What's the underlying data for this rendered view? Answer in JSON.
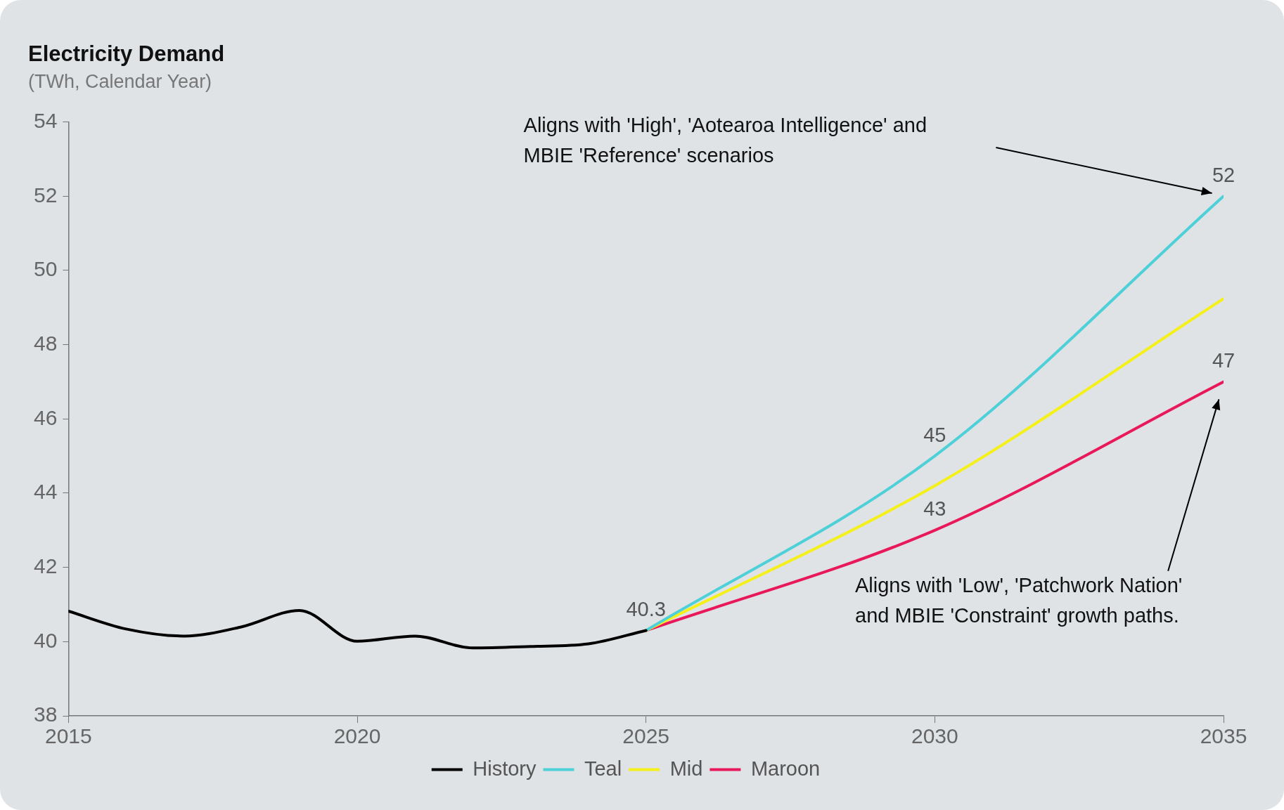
{
  "chart_data": {
    "type": "line",
    "title": "Electricity Demand",
    "subtitle": "(TWh, Calendar Year)",
    "xlim": [
      2015,
      2035
    ],
    "xticks": [
      2015,
      2020,
      2025,
      2030,
      2035
    ],
    "ylim": [
      38,
      54
    ],
    "yticks": [
      38,
      40,
      42,
      44,
      46,
      48,
      50,
      52,
      54
    ],
    "marker": "none",
    "legend": "bottom",
    "series": [
      {
        "name": "History",
        "color": "#000000",
        "x": [
          2015,
          2016,
          2017,
          2018,
          2019,
          2020,
          2021,
          2022,
          2023,
          2024,
          2025
        ],
        "values": [
          40.82,
          40.34,
          40.15,
          40.4,
          40.84,
          40.01,
          40.15,
          39.83,
          39.87,
          39.94,
          40.3
        ],
        "value_labels": [
          null,
          null,
          null,
          null,
          null,
          null,
          null,
          null,
          null,
          null,
          "40.3"
        ]
      },
      {
        "name": "Teal",
        "color": "#4dd0d8",
        "x": [
          2025,
          2030,
          2035
        ],
        "values": [
          40.3,
          45,
          52
        ],
        "value_labels": [
          null,
          "45",
          "52"
        ]
      },
      {
        "name": "Mid",
        "color": "#f5f018",
        "x": [
          2025,
          2030,
          2035
        ],
        "values": [
          40.3,
          44.2,
          49.24
        ]
      },
      {
        "name": "Maroon",
        "color": "#e8185a",
        "x": [
          2025,
          2030,
          2035
        ],
        "values": [
          40.3,
          43,
          47
        ],
        "value_labels": [
          null,
          "43",
          "47"
        ]
      }
    ],
    "annotations": [
      "Aligns with 'High', 'Aotearoa Intelligence' and MBIE 'Reference' scenarios",
      "Aligns with 'Low', 'Patchwork Nation' and MBIE 'Constraint' growth paths."
    ]
  }
}
